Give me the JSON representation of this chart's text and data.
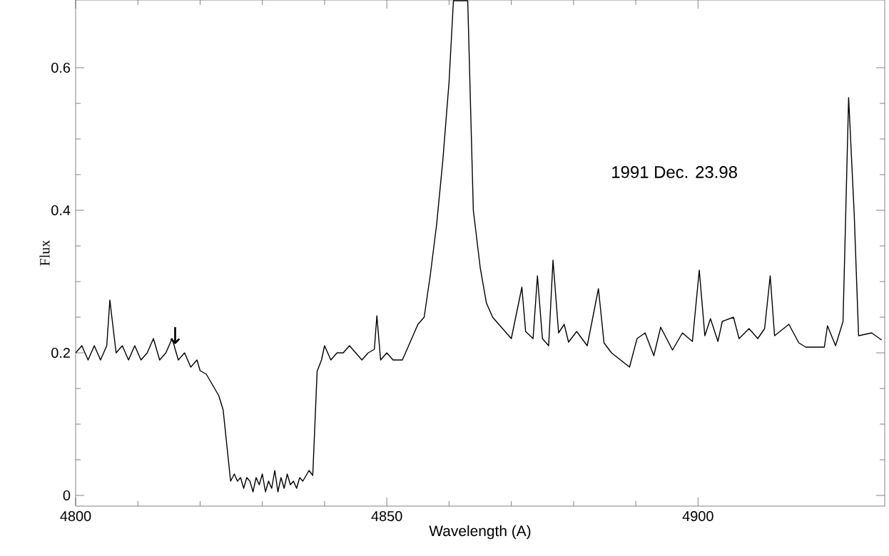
{
  "chart_data": {
    "type": "line",
    "xlabel": "Wavelength (A)",
    "ylabel": "Flux",
    "xlim": [
      4800,
      4930
    ],
    "ylim": [
      -0.015,
      0.695
    ],
    "xticks": [
      4800,
      4850,
      4900
    ],
    "yticks": [
      0,
      0.2,
      0.4,
      0.6
    ],
    "grid": false,
    "line_style": "solid",
    "annotations": [
      "1991 Dec. 23.98",
      "↓"
    ],
    "series": [
      {
        "color": "#000000",
        "x": [
          4800,
          4801,
          4802,
          4803,
          4804,
          4805,
          4805.5,
          4806.5,
          4807.5,
          4808.5,
          4809.5,
          4810.5,
          4811.5,
          4812.5,
          4813.5,
          4814.5,
          4815.5,
          4816.5,
          4817.5,
          4818.5,
          4819.5,
          4820,
          4821,
          4822,
          4823,
          4823.7,
          4824.9,
          4825.5,
          4826,
          4826.5,
          4827,
          4827.5,
          4828,
          4828.5,
          4829,
          4829.5,
          4830,
          4830.5,
          4831,
          4831.5,
          4832,
          4832.5,
          4833,
          4833.5,
          4834,
          4834.5,
          4835,
          4835.5,
          4836,
          4836.5,
          4837.5,
          4838.1,
          4838.8,
          4839.5,
          4840,
          4841,
          4842,
          4843,
          4844,
          4845,
          4846,
          4847,
          4848,
          4848.4,
          4849,
          4850,
          4851,
          4852.5,
          4853.5,
          4855,
          4856,
          4857,
          4858,
          4859,
          4860,
          4860.7,
          4863,
          4863.9,
          4865,
          4866,
          4867,
          4868,
          4869,
          4870,
          4871.7,
          4872.3,
          4873.5,
          4874.2,
          4875,
          4876,
          4876.7,
          4877.6,
          4878.5,
          4879.2,
          4880.5,
          4882.2,
          4884,
          4884.9,
          4886.1,
          4889,
          4890.2,
          4891.5,
          4892.9,
          4894,
          4895.9,
          4897.5,
          4899.1,
          4900.2,
          4901.1,
          4902,
          4903.2,
          4903.9,
          4905.7,
          4906.6,
          4908.2,
          4909.6,
          4910.7,
          4911.6,
          4912.3,
          4914.6,
          4916.2,
          4917.3,
          4920.3,
          4920.8,
          4922.1,
          4923.3,
          4924.2,
          4925.1,
          4925.8,
          4927.9,
          4929.5
        ],
        "values": [
          0.2,
          0.21,
          0.19,
          0.21,
          0.19,
          0.21,
          0.274,
          0.2,
          0.21,
          0.19,
          0.21,
          0.19,
          0.2,
          0.22,
          0.19,
          0.2,
          0.22,
          0.19,
          0.2,
          0.18,
          0.19,
          0.175,
          0.17,
          0.155,
          0.14,
          0.12,
          0.02,
          0.03,
          0.02,
          0.025,
          0.01,
          0.025,
          0.02,
          0.005,
          0.025,
          0.015,
          0.03,
          0.005,
          0.02,
          0.01,
          0.035,
          0.005,
          0.025,
          0.01,
          0.03,
          0.015,
          0.02,
          0.01,
          0.025,
          0.02,
          0.035,
          0.028,
          0.174,
          0.19,
          0.21,
          0.19,
          0.2,
          0.2,
          0.21,
          0.2,
          0.19,
          0.2,
          0.205,
          0.252,
          0.19,
          0.2,
          0.19,
          0.19,
          0.21,
          0.24,
          0.25,
          0.31,
          0.38,
          0.47,
          0.58,
          0.694,
          0.694,
          0.4,
          0.32,
          0.27,
          0.25,
          0.24,
          0.23,
          0.22,
          0.292,
          0.23,
          0.22,
          0.308,
          0.22,
          0.21,
          0.33,
          0.228,
          0.24,
          0.215,
          0.23,
          0.21,
          0.29,
          0.214,
          0.2,
          0.18,
          0.22,
          0.228,
          0.196,
          0.236,
          0.204,
          0.228,
          0.216,
          0.316,
          0.224,
          0.248,
          0.216,
          0.244,
          0.25,
          0.22,
          0.234,
          0.22,
          0.234,
          0.308,
          0.224,
          0.24,
          0.214,
          0.208,
          0.208,
          0.238,
          0.21,
          0.244,
          0.558,
          0.394,
          0.224,
          0.228,
          0.218
        ]
      }
    ]
  }
}
